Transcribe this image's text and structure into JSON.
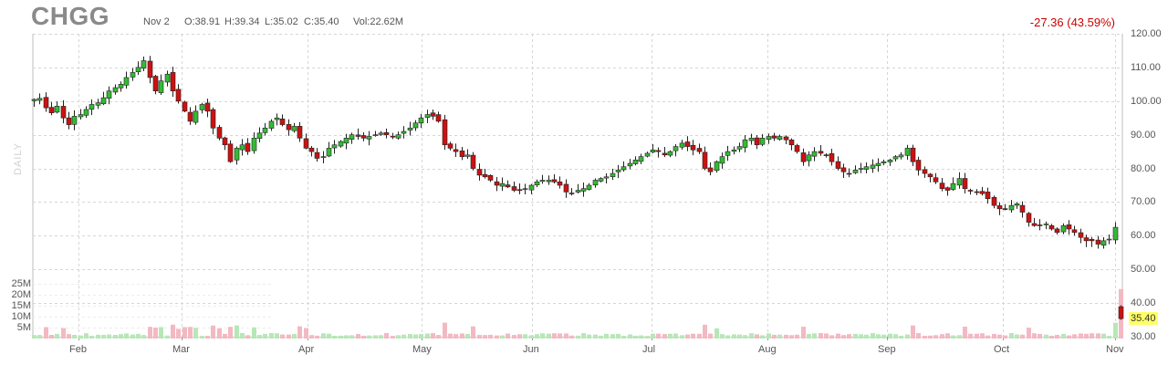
{
  "header": {
    "ticker": "CHGG",
    "date": "Nov 2",
    "open": "O:38.91",
    "high": "H:39.34",
    "low": "L:35.02",
    "close": "C:35.40",
    "volume": "Vol:22.62M",
    "change": "-27.36 (43.59%)"
  },
  "side_label": "DAILY",
  "last_price_badge": "35.40",
  "colors": {
    "up": "#33bb33",
    "down": "#cc1111",
    "vol_up": "#b7e7b7",
    "vol_down": "#f3b9c3",
    "grid": "#d6d6d6",
    "change_text": "#cc0000",
    "badge_bg": "#ffff66"
  },
  "chart_data": {
    "type": "candlestick",
    "ticker": "CHGG",
    "ylim": [
      30,
      120
    ],
    "yticks": [
      120,
      110,
      100,
      90,
      80,
      70,
      60,
      50,
      40,
      30
    ],
    "ytick_labels": [
      "120.00",
      "110.00",
      "100.00",
      "90.00",
      "80.00",
      "70.00",
      "60.00",
      "50.00",
      "40.00",
      "30.00"
    ],
    "volume_ylim": [
      0,
      30
    ],
    "volume_ticks": [
      5,
      10,
      15,
      20,
      25
    ],
    "volume_tick_labels": [
      "5M",
      "10M",
      "15M",
      "20M",
      "25M"
    ],
    "x_labels": [
      "Feb",
      "Mar",
      "Apr",
      "May",
      "Jun",
      "Jul",
      "Aug",
      "Sep",
      "Oct",
      "Nov"
    ],
    "grid": true,
    "closes": [
      100.5,
      100.8,
      98,
      96.5,
      98.5,
      95,
      93,
      95.5,
      96,
      97.5,
      99,
      99.5,
      101,
      103,
      104,
      105,
      107,
      108.5,
      110,
      112,
      107,
      103,
      106,
      108,
      103,
      100,
      97,
      94,
      97,
      99,
      97,
      92,
      89,
      87,
      82,
      86,
      87,
      85,
      89,
      90.5,
      92,
      94,
      95,
      93,
      91.5,
      92.5,
      89,
      86,
      85,
      83,
      83.5,
      86,
      87,
      88,
      89,
      90,
      89.5,
      89,
      89.5,
      90,
      90.5,
      90,
      89.5,
      90,
      91,
      92,
      93.5,
      95,
      96,
      95.5,
      94,
      87,
      86,
      85,
      83.5,
      84,
      80,
      78,
      77.5,
      76.5,
      75,
      75.5,
      74.5,
      73.5,
      73.5,
      74,
      75,
      76,
      76.5,
      76.5,
      76,
      75,
      73,
      72.5,
      73.5,
      74,
      75,
      76.5,
      77,
      77.5,
      78.5,
      79.5,
      80.5,
      81.5,
      82.5,
      83.5,
      84.5,
      85.5,
      85,
      84,
      85,
      86.5,
      87.5,
      86.5,
      85.5,
      85,
      80,
      79,
      82,
      83.5,
      85,
      85.5,
      86.5,
      88.5,
      89,
      87,
      89,
      89.5,
      89,
      89.5,
      88.5,
      87,
      85,
      82,
      84,
      85,
      84.5,
      84,
      82,
      80,
      79,
      78.5,
      79.5,
      80,
      80.5,
      81,
      81.5,
      82,
      82.5,
      83.5,
      84,
      86,
      82,
      79.5,
      78.5,
      77.5,
      76,
      74,
      73.5,
      75.5,
      77,
      74,
      73.5,
      73,
      72.5,
      71,
      69,
      68,
      68,
      69,
      69.5,
      67,
      64,
      63,
      63,
      63.5,
      62,
      61,
      63,
      62,
      61,
      59.5,
      58.5,
      58.5,
      57.5,
      58.5,
      59,
      62.5,
      35.4
    ],
    "last_close": 35.4
  }
}
